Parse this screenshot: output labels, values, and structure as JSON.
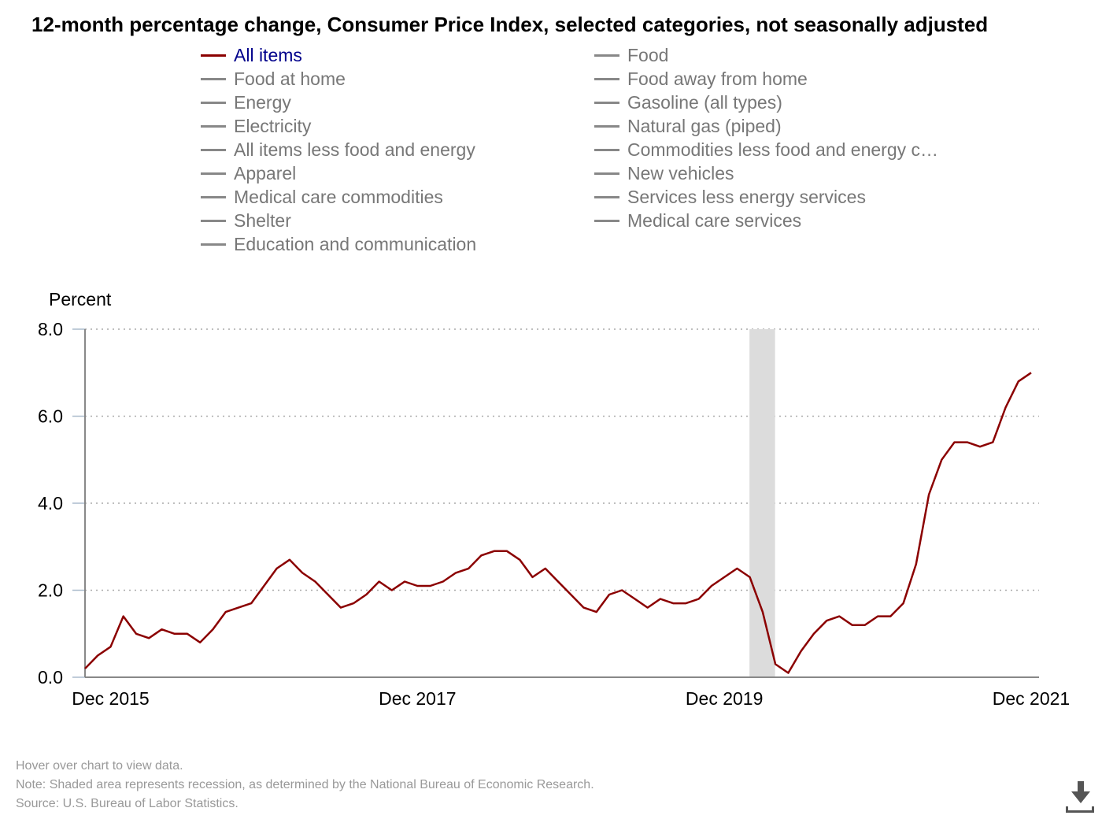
{
  "chart_data": {
    "type": "line",
    "title": "12-month percentage change, Consumer Price Index, selected categories, not seasonally adjusted",
    "ylabel": "Percent",
    "xlabel": "",
    "ylim": [
      0,
      8
    ],
    "yticks": [
      "0.0",
      "2.0",
      "4.0",
      "6.0",
      "8.0"
    ],
    "xtick_labels": [
      {
        "label": "Dec 2015",
        "month_index": 2
      },
      {
        "label": "Dec 2017",
        "month_index": 26
      },
      {
        "label": "Dec 2019",
        "month_index": 50
      },
      {
        "label": "Dec 2021",
        "month_index": 74
      }
    ],
    "x_start": "Oct 2015",
    "x_end": "Dec 2021",
    "grid": "horizontal dotted",
    "recession": {
      "start_month_index": 52,
      "end_month_index": 54,
      "color": "#dcdcdc"
    },
    "legend_position": "top",
    "series": [
      {
        "name": "All items",
        "color": "#8b0000",
        "active": true,
        "values": [
          0.2,
          0.5,
          0.7,
          1.4,
          1.0,
          0.9,
          1.1,
          1.0,
          1.0,
          0.8,
          1.1,
          1.5,
          1.6,
          1.7,
          2.1,
          2.5,
          2.7,
          2.4,
          2.2,
          1.9,
          1.6,
          1.7,
          1.9,
          2.2,
          2.0,
          2.2,
          2.1,
          2.1,
          2.2,
          2.4,
          2.5,
          2.8,
          2.9,
          2.9,
          2.7,
          2.3,
          2.5,
          2.2,
          1.9,
          1.6,
          1.5,
          1.9,
          2.0,
          1.8,
          1.6,
          1.8,
          1.7,
          1.7,
          1.8,
          2.1,
          2.3,
          2.5,
          2.3,
          1.5,
          0.3,
          0.1,
          0.6,
          1.0,
          1.3,
          1.4,
          1.2,
          1.2,
          1.4,
          1.4,
          1.7,
          2.6,
          4.2,
          5.0,
          5.4,
          5.4,
          5.3,
          5.4,
          6.2,
          6.8,
          7.0
        ]
      }
    ],
    "legend": [
      "All items",
      "Food",
      "Food at home",
      "Food away from home",
      "Energy",
      "Gasoline (all types)",
      "Electricity",
      "Natural gas (piped)",
      "All items less food and energy",
      "Commodities less food and energy c…",
      "Apparel",
      "New vehicles",
      "Medical care commodities",
      "Services less energy services",
      "Shelter",
      "Medical care services",
      "Education and communication"
    ]
  },
  "footer": {
    "hover": "Hover over chart to view data.",
    "note": "Note: Shaded area represents recession, as determined by the National Bureau of Economic Research.",
    "source": "Source: U.S. Bureau of Labor Statistics."
  },
  "icons": {
    "download": "download-icon"
  }
}
